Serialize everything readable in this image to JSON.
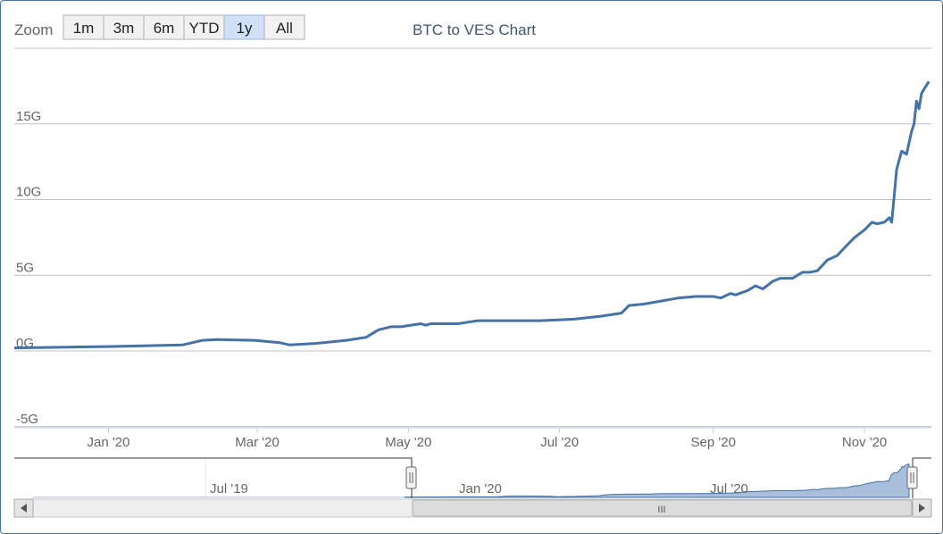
{
  "range_selector": {
    "label": "Zoom",
    "buttons": [
      "1m",
      "3m",
      "6m",
      "YTD",
      "1y",
      "All"
    ],
    "selected": "1y"
  },
  "chart_data": {
    "type": "line",
    "title": "BTC to VES Chart",
    "xlabel": "",
    "ylabel": "",
    "y_unit_suffix": "G",
    "y_ticks": [
      -5,
      0,
      5,
      10,
      15
    ],
    "y_tick_labels": [
      "-5G",
      "0G",
      "5G",
      "10G",
      "15G"
    ],
    "ylim": [
      -5,
      20
    ],
    "xlim": [
      "2019-11-24",
      "2020-11-28"
    ],
    "x_tick_labels": [
      "Jan '20",
      "Mar '20",
      "May '20",
      "Jul '20",
      "Sep '20",
      "Nov '20"
    ],
    "x_tick_dates": [
      "2020-01-01",
      "2020-03-01",
      "2020-05-01",
      "2020-07-01",
      "2020-09-01",
      "2020-11-01"
    ],
    "grid": true,
    "legend": "none",
    "color": "#4572a7",
    "series": [
      {
        "x": [
          "2019-11-24",
          "2019-12-15",
          "2020-01-05",
          "2020-01-31",
          "2020-02-08",
          "2020-02-14",
          "2020-02-29",
          "2020-03-10",
          "2020-03-14",
          "2020-03-25",
          "2020-04-06",
          "2020-04-14",
          "2020-04-19",
          "2020-04-24",
          "2020-04-28",
          "2020-05-06",
          "2020-05-08",
          "2020-05-10",
          "2020-05-21",
          "2020-05-25",
          "2020-05-29",
          "2020-06-06",
          "2020-06-16",
          "2020-06-23",
          "2020-07-07",
          "2020-07-18",
          "2020-07-26",
          "2020-07-29",
          "2020-08-04",
          "2020-08-11",
          "2020-08-18",
          "2020-08-25",
          "2020-09-01",
          "2020-09-04",
          "2020-09-08",
          "2020-09-10",
          "2020-09-15",
          "2020-09-18",
          "2020-09-21",
          "2020-09-25",
          "2020-09-28",
          "2020-10-03",
          "2020-10-07",
          "2020-10-10",
          "2020-10-13",
          "2020-10-17",
          "2020-10-21",
          "2020-10-25",
          "2020-10-28",
          "2020-11-01",
          "2020-11-04",
          "2020-11-06",
          "2020-11-09",
          "2020-11-11",
          "2020-11-12",
          "2020-11-14",
          "2020-11-16",
          "2020-11-18",
          "2020-11-20",
          "2020-11-21",
          "2020-11-22",
          "2020-11-23",
          "2020-11-24",
          "2020-11-25",
          "2020-11-27"
        ],
        "values": [
          0.2,
          0.25,
          0.3,
          0.4,
          0.7,
          0.75,
          0.7,
          0.55,
          0.4,
          0.5,
          0.7,
          0.9,
          1.4,
          1.6,
          1.6,
          1.8,
          1.7,
          1.8,
          1.8,
          1.9,
          2.0,
          2.0,
          2.0,
          2.0,
          2.1,
          2.3,
          2.5,
          3.0,
          3.1,
          3.3,
          3.5,
          3.6,
          3.6,
          3.5,
          3.8,
          3.7,
          4.0,
          4.3,
          4.1,
          4.6,
          4.8,
          4.8,
          5.2,
          5.2,
          5.3,
          6.0,
          6.3,
          7.0,
          7.5,
          8.0,
          8.5,
          8.4,
          8.5,
          8.8,
          8.5,
          12.0,
          13.2,
          13.0,
          14.5,
          15.0,
          16.5,
          16.0,
          17.0,
          17.3,
          17.8
        ]
      }
    ]
  },
  "navigator": {
    "x_tick_labels": [
      "Jul '19",
      "Jan '20",
      "Jul '20"
    ],
    "scroll_thumb_grip": "III"
  }
}
